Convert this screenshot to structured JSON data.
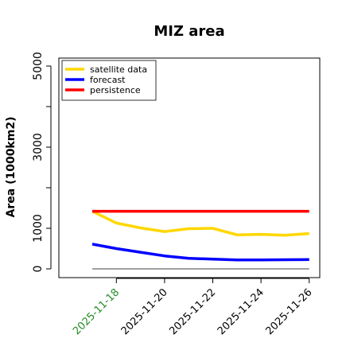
{
  "chart_data": {
    "type": "line",
    "title": "MIZ area",
    "xlabel": "",
    "ylabel": "Area (1000km2)",
    "x": [
      "2025-11-17",
      "2025-11-18",
      "2025-11-19",
      "2025-11-20",
      "2025-11-21",
      "2025-11-22",
      "2025-11-23",
      "2025-11-24",
      "2025-11-25",
      "2025-11-26"
    ],
    "x_ticks": [
      "2025-11-18",
      "2025-11-20",
      "2025-11-22",
      "2025-11-24",
      "2025-11-26"
    ],
    "x_tick_colors": [
      "#228b22",
      "#000000",
      "#000000",
      "#000000",
      "#000000"
    ],
    "y_ticks": [
      0,
      1000,
      3000,
      5000
    ],
    "ylim": [
      0,
      5000
    ],
    "grid": false,
    "legend_position": "top-left",
    "reference_line": {
      "value": 0,
      "color": "#808080"
    },
    "series": [
      {
        "name": "satellite data",
        "color": "#FFD700",
        "values": [
          1420,
          1130,
          1010,
          920,
          990,
          1000,
          840,
          850,
          830,
          870
        ]
      },
      {
        "name": "forecast",
        "color": "#0000FF",
        "values": [
          610,
          500,
          410,
          320,
          260,
          240,
          220,
          220,
          225,
          230
        ]
      },
      {
        "name": "persistence",
        "color": "#FF0000",
        "values": [
          1420,
          1420,
          1420,
          1420,
          1420,
          1420,
          1420,
          1420,
          1420,
          1420
        ]
      }
    ]
  }
}
